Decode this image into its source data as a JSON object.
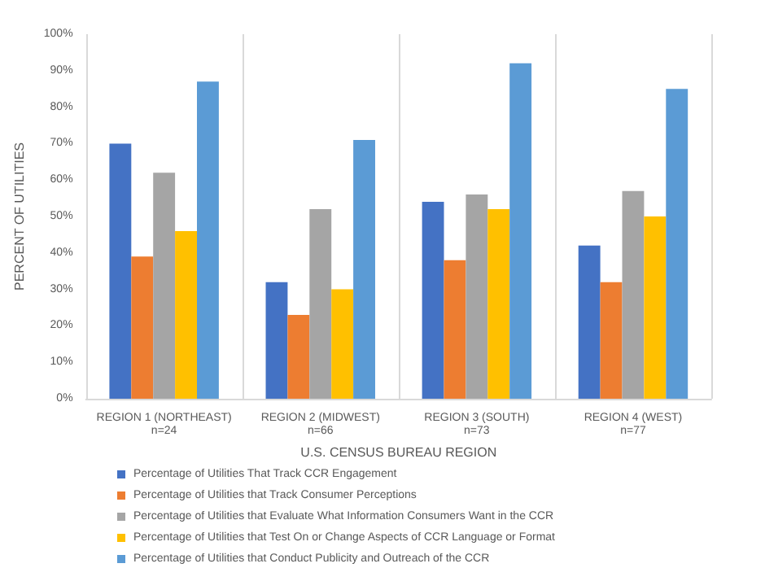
{
  "chart_data": {
    "type": "bar",
    "xlabel": "U.S. CENSUS BUREAU REGION",
    "ylabel": "PERCENT OF UTILITIES",
    "categories": [
      "REGION 1 (NORTHEAST)\nn=24",
      "REGION 2 (MIDWEST)\nn=66",
      "REGION 3 (SOUTH)\nn=73",
      "REGION 4 (WEST)\nn=77"
    ],
    "series": [
      {
        "name": "Percentage of Utilities That Track CCR Engagement",
        "color": "#4472c4",
        "values": [
          70,
          32,
          54,
          42
        ]
      },
      {
        "name": "Percentage of Utilities that Track Consumer Perceptions",
        "color": "#ed7d31",
        "values": [
          39,
          23,
          38,
          32
        ]
      },
      {
        "name": "Percentage of Utilities that Evaluate What Information Consumers Want in the CCR",
        "color": "#a5a5a5",
        "values": [
          62,
          52,
          56,
          57
        ]
      },
      {
        "name": "Percentage of Utilities that Test On or Change Aspects of CCR Language or Format",
        "color": "#ffc000",
        "values": [
          46,
          30,
          52,
          50
        ]
      },
      {
        "name": "Percentage of Utilities that Conduct Publicity and Outreach of the CCR",
        "color": "#5b9bd5",
        "values": [
          87,
          71,
          92,
          85
        ]
      }
    ],
    "ylim": [
      0,
      100
    ],
    "yticks": [
      {
        "value": 0,
        "label": "0%"
      },
      {
        "value": 10,
        "label": "10%"
      },
      {
        "value": 20,
        "label": "20%"
      },
      {
        "value": 30,
        "label": "30%"
      },
      {
        "value": 40,
        "label": "40%"
      },
      {
        "value": 50,
        "label": "50%"
      },
      {
        "value": 60,
        "label": "60%"
      },
      {
        "value": 70,
        "label": "70%"
      },
      {
        "value": 80,
        "label": "80%"
      },
      {
        "value": 90,
        "label": "90%"
      },
      {
        "value": 100,
        "label": "100%"
      }
    ],
    "grid": "x",
    "legend": "bottom"
  }
}
